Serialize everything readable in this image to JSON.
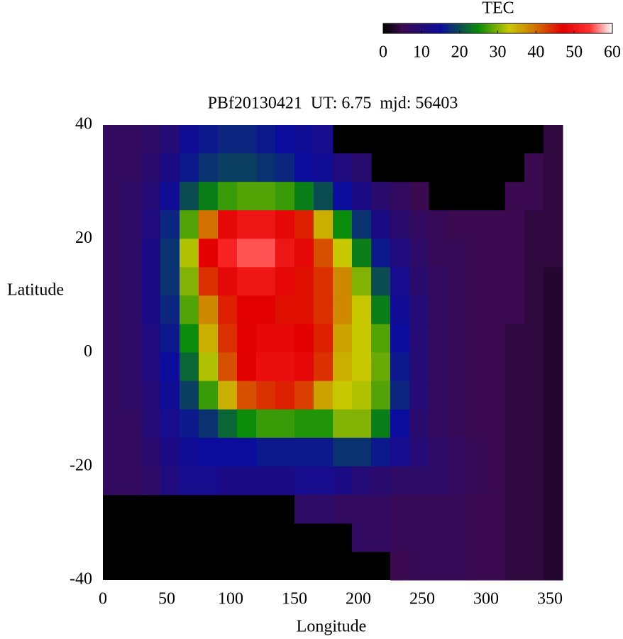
{
  "chart_data": {
    "type": "heatmap",
    "title": "PBf20130421  UT: 6.75  mjd: 56403",
    "x_label": "Longitude",
    "y_label": "Latitude",
    "colorbar_label": "TEC",
    "x": [
      7.5,
      22.5,
      37.5,
      52.5,
      67.5,
      82.5,
      97.5,
      112.5,
      127.5,
      142.5,
      157.5,
      172.5,
      187.5,
      202.5,
      217.5,
      232.5,
      247.5,
      262.5,
      277.5,
      292.5,
      307.5,
      322.5,
      337.5,
      352.5
    ],
    "y": [
      37.5,
      32.5,
      27.5,
      22.5,
      17.5,
      12.5,
      7.5,
      2.5,
      -2.5,
      -7.5,
      -12.5,
      -17.5,
      -22.5,
      -27.5,
      -32.5,
      -37.5
    ],
    "values": [
      [
        7,
        7,
        8,
        10,
        14,
        16,
        17,
        17,
        16,
        15,
        14,
        13,
        null,
        null,
        null,
        null,
        null,
        null,
        null,
        null,
        null,
        null,
        null,
        4
      ],
      [
        7,
        7,
        9,
        12,
        16,
        18,
        19,
        19,
        18,
        17,
        15,
        14,
        11,
        9,
        null,
        null,
        null,
        null,
        null,
        null,
        null,
        null,
        5,
        4
      ],
      [
        7,
        8,
        10,
        14,
        20,
        24,
        27,
        28,
        28,
        27,
        24,
        20,
        15,
        12,
        9,
        7,
        5,
        null,
        null,
        null,
        null,
        5,
        5,
        4
      ],
      [
        7,
        8,
        11,
        17,
        28,
        40,
        48,
        50,
        50,
        48,
        45,
        35,
        25,
        18,
        12,
        9,
        7,
        6,
        5,
        5,
        5,
        5,
        4,
        4
      ],
      [
        7,
        8,
        12,
        18,
        32,
        47,
        52,
        55,
        55,
        50,
        48,
        42,
        33,
        24,
        16,
        11,
        8,
        6,
        6,
        5,
        5,
        5,
        4,
        4
      ],
      [
        7,
        8,
        12,
        18,
        30,
        44,
        48,
        50,
        50,
        48,
        46,
        44,
        38,
        30,
        20,
        13,
        9,
        7,
        6,
        5,
        5,
        5,
        4,
        3
      ],
      [
        7,
        8,
        12,
        17,
        28,
        38,
        45,
        47,
        47,
        46,
        46,
        44,
        38,
        33,
        24,
        14,
        10,
        7,
        6,
        5,
        5,
        5,
        4,
        3
      ],
      [
        7,
        8,
        11,
        16,
        25,
        35,
        44,
        47,
        48,
        48,
        47,
        45,
        36,
        33,
        28,
        15,
        10,
        7,
        6,
        5,
        5,
        4,
        4,
        3
      ],
      [
        7,
        8,
        11,
        15,
        22,
        32,
        42,
        47,
        49,
        49,
        48,
        44,
        35,
        33,
        29,
        16,
        10,
        7,
        6,
        5,
        5,
        4,
        4,
        3
      ],
      [
        7,
        8,
        10,
        14,
        19,
        27,
        35,
        42,
        44,
        45,
        43,
        36,
        33,
        32,
        28,
        17,
        10,
        7,
        6,
        5,
        5,
        4,
        4,
        3
      ],
      [
        7,
        7,
        10,
        13,
        16,
        18,
        22,
        25,
        27,
        27,
        26,
        26,
        30,
        30,
        24,
        15,
        9,
        7,
        6,
        5,
        5,
        4,
        4,
        3
      ],
      [
        7,
        7,
        9,
        12,
        14,
        15,
        15,
        15,
        16,
        16,
        16,
        16,
        18,
        18,
        16,
        13,
        10,
        8,
        7,
        6,
        5,
        4,
        4,
        3
      ],
      [
        7,
        7,
        8,
        11,
        13,
        13,
        12,
        12,
        12,
        12,
        13,
        13,
        12,
        10,
        9,
        8,
        8,
        8,
        7,
        6,
        5,
        4,
        4,
        3
      ],
      [
        null,
        null,
        null,
        null,
        null,
        null,
        null,
        null,
        null,
        null,
        8,
        8,
        7,
        7,
        7,
        6,
        6,
        6,
        6,
        5,
        5,
        4,
        4,
        3
      ],
      [
        null,
        null,
        null,
        null,
        null,
        null,
        null,
        null,
        null,
        null,
        null,
        null,
        null,
        7,
        7,
        6,
        6,
        6,
        6,
        5,
        5,
        4,
        4,
        3
      ],
      [
        null,
        null,
        null,
        null,
        null,
        null,
        null,
        null,
        null,
        null,
        null,
        null,
        null,
        null,
        null,
        5,
        6,
        6,
        6,
        5,
        5,
        4,
        4,
        3
      ]
    ],
    "xlim": [
      0,
      360
    ],
    "xticks": [
      0,
      50,
      100,
      150,
      200,
      250,
      300,
      350
    ],
    "ylim": [
      -40,
      40
    ],
    "yticks": [
      -40,
      -20,
      0,
      20,
      40
    ],
    "clim": [
      0,
      60
    ],
    "cticks": [
      0,
      10,
      20,
      30,
      40,
      50,
      60
    ],
    "missing_color": "#000000",
    "colorscale": [
      [
        0,
        "#000000"
      ],
      [
        5,
        "#3c0a50"
      ],
      [
        15,
        "#0c0c9c"
      ],
      [
        25,
        "#0a8c0a"
      ],
      [
        33,
        "#c8c800"
      ],
      [
        40,
        "#d27000"
      ],
      [
        47,
        "#e20000"
      ],
      [
        54,
        "#ff3030"
      ],
      [
        60,
        "#ffffff"
      ]
    ]
  }
}
